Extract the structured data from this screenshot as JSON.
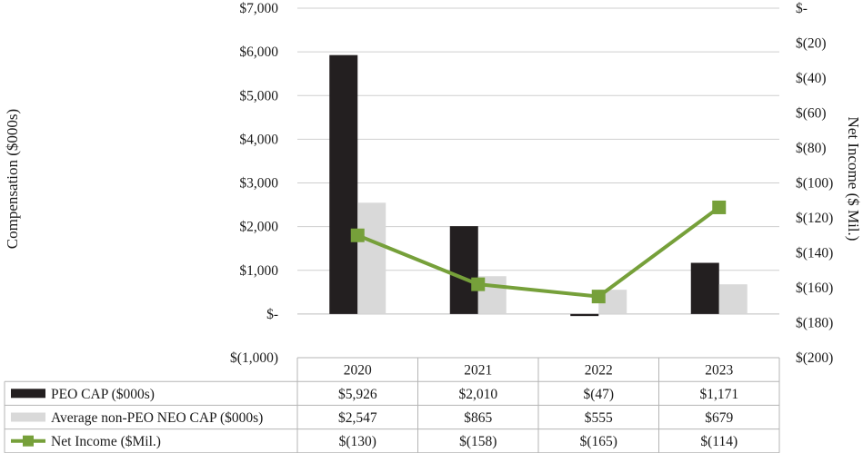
{
  "chart_data": {
    "type": "bar",
    "title": "",
    "categories": [
      "2020",
      "2021",
      "2022",
      "2023"
    ],
    "ylabel": "Compensation ($000s)",
    "ylabel_right": "Net Income ($ Mil.)",
    "ylim": [
      -1000,
      7000
    ],
    "ylim_right": [
      -200,
      0
    ],
    "y_ticks": [
      {
        "value": 7000,
        "label": "$7,000"
      },
      {
        "value": 6000,
        "label": "$6,000"
      },
      {
        "value": 5000,
        "label": "$5,000"
      },
      {
        "value": 4000,
        "label": "$4,000"
      },
      {
        "value": 3000,
        "label": "$3,000"
      },
      {
        "value": 2000,
        "label": "$2,000"
      },
      {
        "value": 1000,
        "label": "$1,000"
      },
      {
        "value": 0,
        "label": "$-"
      },
      {
        "value": -1000,
        "label": "$(1,000)"
      }
    ],
    "y_ticks_right": [
      {
        "value": 0,
        "label": "$-"
      },
      {
        "value": -20,
        "label": "$(20)"
      },
      {
        "value": -40,
        "label": "$(40)"
      },
      {
        "value": -60,
        "label": "$(60)"
      },
      {
        "value": -80,
        "label": "$(80)"
      },
      {
        "value": -100,
        "label": "$(100)"
      },
      {
        "value": -120,
        "label": "$(120)"
      },
      {
        "value": -140,
        "label": "$(140)"
      },
      {
        "value": -160,
        "label": "$(160)"
      },
      {
        "value": -180,
        "label": "$(180)"
      },
      {
        "value": -200,
        "label": "$(200)"
      }
    ],
    "grid": true,
    "series": [
      {
        "name": "PEO CAP ($000s)",
        "type": "bar",
        "axis": "left",
        "color": "#231f20",
        "values": [
          5926,
          2010,
          -47,
          1171
        ],
        "labels": [
          "$5,926",
          "$2,010",
          "$(47)",
          "$1,171"
        ]
      },
      {
        "name": "Average non-PEO NEO CAP ($000s)",
        "type": "bar",
        "axis": "left",
        "color": "#d9d9d9",
        "values": [
          2547,
          865,
          555,
          679
        ],
        "labels": [
          "$2,547",
          "$865",
          "$555",
          "$679"
        ]
      },
      {
        "name": "Net Income ($Mil.)",
        "type": "line",
        "axis": "right",
        "color": "#76a03a",
        "values": [
          -130,
          -158,
          -165,
          -114
        ],
        "labels": [
          "$(130)",
          "$(158)",
          "$(165)",
          "$(114)"
        ]
      }
    ]
  }
}
